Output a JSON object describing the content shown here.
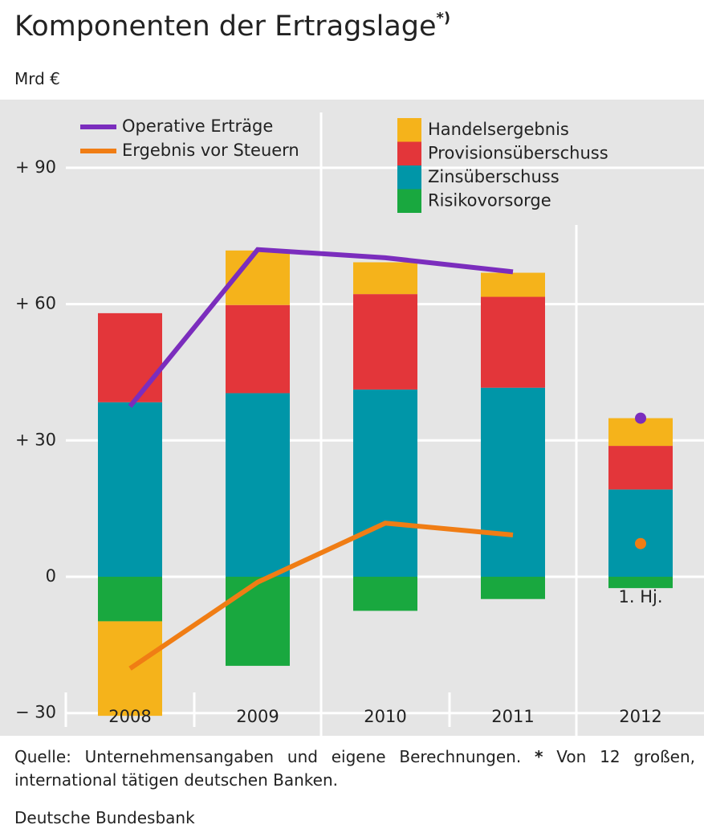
{
  "chart_data": {
    "type": "bar",
    "title": "Komponenten der Ertragslage",
    "title_note": "*)",
    "subtitle": "Mrd €",
    "categories": [
      "2008",
      "2009",
      "2010",
      "2011",
      "2012"
    ],
    "series": [
      {
        "name": "Handelsergebnis",
        "color": "#f5b31b",
        "values": [
          -20.8,
          12,
          7,
          5.3,
          6.1
        ]
      },
      {
        "name": "Provisionsüberschuss",
        "color": "#e3363a",
        "values": [
          19.6,
          19.4,
          21,
          20,
          9.6
        ]
      },
      {
        "name": "Zinsüberschuss",
        "color": "#0096a8",
        "values": [
          38.4,
          40.4,
          41.2,
          41.6,
          19.2
        ]
      },
      {
        "name": "Risikovorsorge",
        "color": "#19a83f",
        "values": [
          -9.8,
          -19.6,
          -7.5,
          -4.9,
          -2.5
        ]
      }
    ],
    "lines": [
      {
        "name": "Operative Erträge",
        "color": "#7b2dbd",
        "values": [
          37.5,
          72,
          70.2,
          67.1,
          34.9
        ]
      },
      {
        "name": "Ergebnis vor Steuern",
        "color": "#f07d14",
        "values": [
          -20.2,
          -1.2,
          11.8,
          9.2,
          7.3
        ]
      }
    ],
    "annotation": {
      "text": "1. Hj.",
      "category": "2012"
    },
    "ylim": [
      -35,
      105
    ],
    "yticks": [
      {
        "value": -30,
        "label": "− 30"
      },
      0,
      {
        "value": 30,
        "label": "+ 30"
      },
      {
        "value": 60,
        "label": "+ 60"
      },
      {
        "value": 90,
        "label": "+ 90"
      }
    ],
    "grid": true,
    "stacked": true,
    "source": "Quelle: Unternehmensangaben und eigene Berechnungen.",
    "footnote_marker": "*",
    "footnote": "Von 12 großen, international tätigen deutschen Banken.",
    "publisher": "Deutsche Bundesbank"
  }
}
